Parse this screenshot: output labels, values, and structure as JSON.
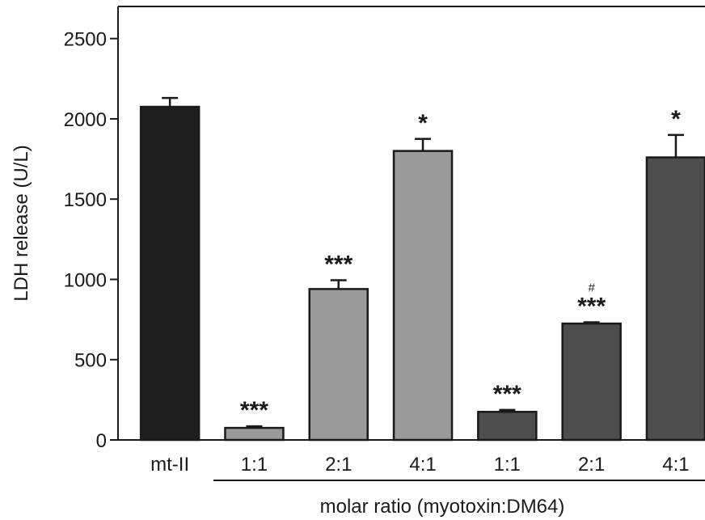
{
  "chart_data": {
    "type": "bar",
    "xlabel": "molar ratio (myotoxin:DM64)",
    "ylabel": "LDH release (U/L)",
    "ylim": [
      0,
      2700
    ],
    "yticks": [
      0,
      500,
      1000,
      1500,
      2000,
      2500
    ],
    "categories": [
      "mt-II",
      "1:1",
      "2:1",
      "4:1",
      "1:1",
      "2:1",
      "4:1"
    ],
    "values": [
      2075,
      75,
      940,
      1800,
      175,
      725,
      1760
    ],
    "errors": [
      55,
      10,
      55,
      75,
      12,
      8,
      140
    ],
    "colors": [
      "#1e1e1e",
      "#9a9a9a",
      "#9a9a9a",
      "#9a9a9a",
      "#4d4d4d",
      "#4d4d4d",
      "#4d4d4d"
    ],
    "significance": [
      "",
      "***",
      "***",
      "*",
      "***",
      "***",
      "*"
    ],
    "secondary_marks": [
      "",
      "",
      "",
      "",
      "",
      "#",
      ""
    ],
    "grid": false,
    "legend": "none"
  }
}
